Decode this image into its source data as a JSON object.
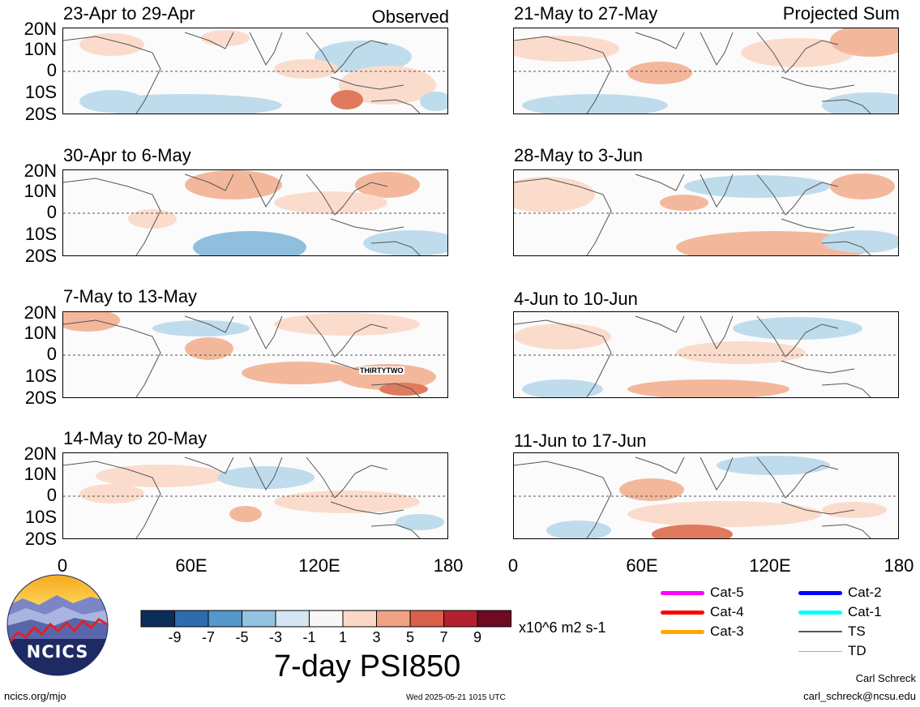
{
  "panels_left": [
    {
      "title": "23-Apr to 29-Apr",
      "tag": "Observed"
    },
    {
      "title": "30-Apr to 6-May",
      "tag": ""
    },
    {
      "title": "7-May to 13-May",
      "tag": "",
      "storm_label": "THIRTYTWO"
    },
    {
      "title": "14-May to 20-May",
      "tag": ""
    }
  ],
  "panels_right": [
    {
      "title": "21-May to 27-May",
      "tag": "Projected Sum"
    },
    {
      "title": "28-May to 3-Jun",
      "tag": ""
    },
    {
      "title": "4-Jun to 10-Jun",
      "tag": ""
    },
    {
      "title": "11-Jun to 17-Jun",
      "tag": ""
    }
  ],
  "lat_labels": [
    "20N",
    "10N",
    "0",
    "10S",
    "20S"
  ],
  "lon_labels": [
    "0",
    "60E",
    "120E",
    "180"
  ],
  "colorbar": {
    "ticks": [
      "-9",
      "-7",
      "-5",
      "-3",
      "-1",
      "1",
      "3",
      "5",
      "7",
      "9"
    ],
    "colors": [
      "#0b2d5c",
      "#2e6cae",
      "#5598cc",
      "#93c3e0",
      "#d3e6f2",
      "#f7f7f7",
      "#fbd8c6",
      "#f0a283",
      "#d9604a",
      "#b32130",
      "#6e0a24"
    ],
    "units": "x10^6 m2 s-1"
  },
  "title": "7-day PSI850",
  "legend": {
    "items": [
      {
        "label": "Cat-5",
        "color": "#ff00ff"
      },
      {
        "label": "Cat-4",
        "color": "#ff0000"
      },
      {
        "label": "Cat-3",
        "color": "#ffa500"
      },
      {
        "label": "Cat-2",
        "color": "#0000ff"
      },
      {
        "label": "Cat-1",
        "color": "#00ffff"
      },
      {
        "label": "TS",
        "color": "#555555"
      },
      {
        "label": "TD",
        "color": "#aaaaaa"
      }
    ]
  },
  "logo": {
    "text": "NCICS"
  },
  "footer": {
    "left": "ncics.org/mjo",
    "center": "Wed 2025-05-21 1015 UTC",
    "author": "Carl Schreck",
    "email": "carl_schreck@ncsu.edu"
  }
}
